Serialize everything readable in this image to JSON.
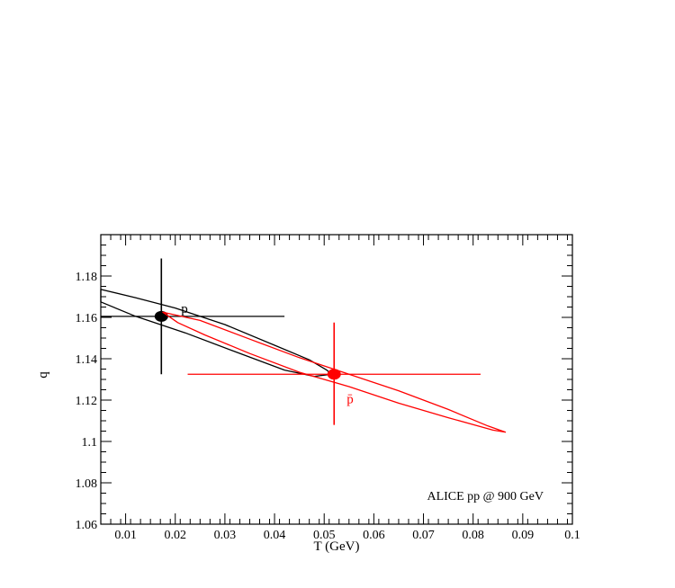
{
  "chart_data": {
    "type": "scatter",
    "title": "",
    "xlabel": "T (GeV)",
    "ylabel": "q",
    "xlim": [
      0.005,
      0.1
    ],
    "ylim": [
      1.06,
      1.2
    ],
    "x_ticks": [
      0.01,
      0.02,
      0.03,
      0.04,
      0.05,
      0.06,
      0.07,
      0.08,
      0.09,
      0.1
    ],
    "x_tick_labels": [
      "0.01",
      "0.02",
      "0.03",
      "0.04",
      "0.05",
      "0.06",
      "0.07",
      "0.08",
      "0.09",
      "0.1"
    ],
    "y_ticks": [
      1.06,
      1.08,
      1.1,
      1.12,
      1.14,
      1.16,
      1.18
    ],
    "y_tick_labels": [
      "1.06",
      "1.08",
      "1.1",
      "1.12",
      "1.14",
      "1.16",
      "1.18"
    ],
    "grid": false,
    "annotation": "ALICE pp @ 900 GeV",
    "series": [
      {
        "name": "p",
        "color": "#000000",
        "point": {
          "x": 0.0172,
          "y": 1.1605
        },
        "x_error": [
          0.0,
          0.042
        ],
        "y_error": [
          1.1325,
          1.1885
        ],
        "contour": [
          [
            0.005,
            1.1735
          ],
          [
            0.012,
            1.1695
          ],
          [
            0.02,
            1.1645
          ],
          [
            0.03,
            1.1565
          ],
          [
            0.04,
            1.1465
          ],
          [
            0.047,
            1.1395
          ],
          [
            0.0505,
            1.1345
          ],
          [
            0.0515,
            1.1325
          ],
          [
            0.048,
            1.1315
          ],
          [
            0.042,
            1.1345
          ],
          [
            0.032,
            1.1435
          ],
          [
            0.022,
            1.1525
          ],
          [
            0.012,
            1.1605
          ],
          [
            0.005,
            1.1675
          ]
        ]
      },
      {
        "name": "p̄",
        "color": "#ff0000",
        "point": {
          "x": 0.052,
          "y": 1.1325
        },
        "x_error": [
          0.0225,
          0.0815
        ],
        "y_error": [
          1.108,
          1.1575
        ],
        "contour": [
          [
            0.0175,
            1.1625
          ],
          [
            0.025,
            1.1585
          ],
          [
            0.035,
            1.1495
          ],
          [
            0.045,
            1.1405
          ],
          [
            0.055,
            1.1325
          ],
          [
            0.065,
            1.1245
          ],
          [
            0.075,
            1.1155
          ],
          [
            0.083,
            1.1075
          ],
          [
            0.0865,
            1.1045
          ],
          [
            0.084,
            1.1055
          ],
          [
            0.075,
            1.1115
          ],
          [
            0.065,
            1.1185
          ],
          [
            0.055,
            1.1265
          ],
          [
            0.045,
            1.1335
          ],
          [
            0.035,
            1.1425
          ],
          [
            0.026,
            1.1515
          ],
          [
            0.0205,
            1.1575
          ],
          [
            0.0175,
            1.1625
          ]
        ]
      }
    ]
  }
}
